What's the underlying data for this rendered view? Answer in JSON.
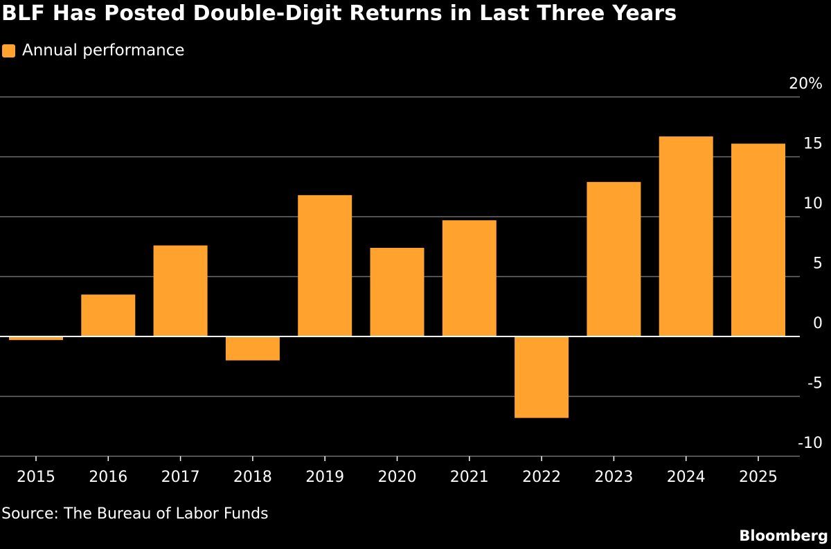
{
  "title": "BLF Has Posted Double-Digit Returns in Last Three Years",
  "legend": {
    "label": "Annual performance",
    "color": "#FFA22E"
  },
  "source": "Source: The Bureau of Labor Funds",
  "brand": "Bloomberg",
  "chart_data": {
    "type": "bar",
    "categories": [
      "2015",
      "2016",
      "2017",
      "2018",
      "2019",
      "2020",
      "2021",
      "2022",
      "2023",
      "2024",
      "2025"
    ],
    "series": [
      {
        "name": "Annual performance",
        "values": [
          -0.3,
          3.5,
          7.6,
          -2.0,
          11.8,
          7.4,
          9.7,
          -6.8,
          12.9,
          16.7,
          16.1
        ]
      }
    ],
    "ylim": [
      -10,
      20
    ],
    "yticks": [
      20,
      15,
      10,
      5,
      0,
      -5,
      -10
    ],
    "ytick_labels": [
      "20%",
      "15",
      "10",
      "5",
      "0",
      "-5",
      "-10"
    ],
    "grid": true,
    "legend_position": "top-left"
  }
}
